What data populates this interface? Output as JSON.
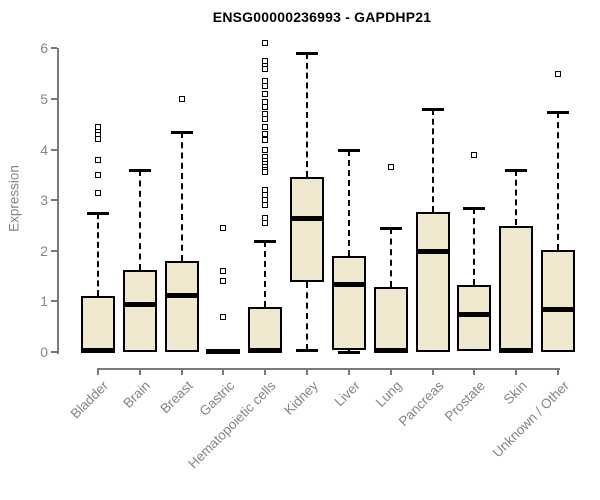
{
  "chart_data": {
    "type": "boxplot",
    "title": "ENSG00000236993 - GAPDHP21",
    "ylabel": "Expression",
    "ylim": [
      0,
      6
    ],
    "yticks": [
      0,
      1,
      2,
      3,
      4,
      5,
      6
    ],
    "grid": false,
    "legend_position": "none",
    "categories": [
      "Bladder",
      "Brain",
      "Breast",
      "Gastric",
      "Hematopoietic cells",
      "Kidney",
      "Liver",
      "Lung",
      "Pancreas",
      "Prostate",
      "Skin",
      "Unknown / Other"
    ],
    "boxes": [
      {
        "category": "Bladder",
        "whisker_low": 0,
        "q1": 0,
        "median": 0.04,
        "q3": 1.1,
        "whisker_high": 2.75,
        "outliers": [
          3.15,
          3.5,
          3.8,
          4.2,
          4.3,
          4.38,
          4.45
        ]
      },
      {
        "category": "Brain",
        "whisker_low": 0,
        "q1": 0,
        "median": 0.95,
        "q3": 1.63,
        "whisker_high": 3.6,
        "outliers": []
      },
      {
        "category": "Breast",
        "whisker_low": 0,
        "q1": 0,
        "median": 1.12,
        "q3": 1.8,
        "whisker_high": 4.35,
        "outliers": [
          5.0
        ]
      },
      {
        "category": "Gastric",
        "whisker_low": 0,
        "q1": 0,
        "median": 0.02,
        "q3": 0.04,
        "whisker_high": 0.04,
        "outliers": [
          2.45,
          1.6,
          1.4,
          0.7
        ]
      },
      {
        "category": "Hematopoietic cells",
        "whisker_low": 0,
        "q1": 0,
        "median": 0.04,
        "q3": 0.88,
        "whisker_high": 2.2,
        "outliers": [
          6.1,
          5.75,
          5.65,
          5.6,
          5.35,
          5.25,
          5.1,
          4.95,
          4.85,
          4.7,
          4.6,
          4.45,
          4.3,
          4.18,
          4.0,
          3.85,
          3.78,
          3.72,
          3.66,
          3.6,
          3.55,
          3.2,
          3.1,
          3.0,
          2.9,
          2.65,
          2.55
        ]
      },
      {
        "category": "Kidney",
        "whisker_low": 0.03,
        "q1": 1.38,
        "median": 2.65,
        "q3": 3.45,
        "whisker_high": 5.9,
        "outliers": []
      },
      {
        "category": "Liver",
        "whisker_low": 0,
        "q1": 0.03,
        "median": 1.35,
        "q3": 1.9,
        "whisker_high": 4.0,
        "outliers": []
      },
      {
        "category": "Lung",
        "whisker_low": 0,
        "q1": 0,
        "median": 0.03,
        "q3": 1.28,
        "whisker_high": 2.45,
        "outliers": [
          3.65
        ]
      },
      {
        "category": "Pancreas",
        "whisker_low": 0,
        "q1": 0,
        "median": 2.0,
        "q3": 2.76,
        "whisker_high": 4.8,
        "outliers": []
      },
      {
        "category": "Prostate",
        "whisker_low": 0,
        "q1": 0.02,
        "median": 0.75,
        "q3": 1.32,
        "whisker_high": 2.85,
        "outliers": [
          3.9
        ]
      },
      {
        "category": "Skin",
        "whisker_low": 0,
        "q1": 0,
        "median": 0.04,
        "q3": 2.5,
        "whisker_high": 3.6,
        "outliers": []
      },
      {
        "category": "Unknown / Other",
        "whisker_low": 0,
        "q1": 0,
        "median": 0.85,
        "q3": 2.02,
        "whisker_high": 4.75,
        "outliers": [
          5.5
        ]
      }
    ],
    "colors": {
      "box_fill": "#EFE8CF",
      "box_border": "#000000",
      "median": "#000000",
      "whisker": "#000000",
      "axis": "#7A7A7A",
      "tick_label": "#858585",
      "title": "#000000",
      "background": "#FFFFFF"
    }
  }
}
